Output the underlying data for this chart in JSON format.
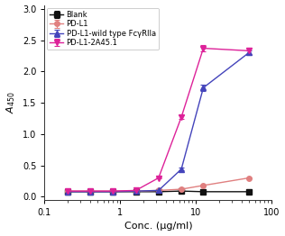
{
  "title": "",
  "xlabel": "Conc. (μg/ml)",
  "ylabel": "$A_{450}$",
  "xlim": [
    0.15,
    100
  ],
  "ylim": [
    -0.05,
    3.05
  ],
  "yticks": [
    0.0,
    0.5,
    1.0,
    1.5,
    2.0,
    2.5,
    3.0
  ],
  "series": [
    {
      "label": "Blank",
      "color": "#111111",
      "marker": "s",
      "x": [
        0.2,
        0.4,
        0.8,
        1.6,
        3.2,
        6.4,
        12.5,
        50
      ],
      "y": [
        0.08,
        0.08,
        0.08,
        0.08,
        0.08,
        0.09,
        0.08,
        0.08
      ],
      "yerr": [
        0.005,
        0.005,
        0.005,
        0.005,
        0.005,
        0.005,
        0.005,
        0.005
      ]
    },
    {
      "label": "PD-L1",
      "color": "#e08080",
      "marker": "o",
      "x": [
        0.2,
        0.4,
        0.8,
        1.6,
        3.2,
        6.4,
        12.5,
        50
      ],
      "y": [
        0.09,
        0.09,
        0.09,
        0.09,
        0.1,
        0.12,
        0.18,
        0.3
      ],
      "yerr": [
        0.005,
        0.005,
        0.005,
        0.005,
        0.005,
        0.005,
        0.01,
        0.01
      ]
    },
    {
      "label": "PD-L1-wild type FcγRIIa",
      "color": "#4444bb",
      "marker": "^",
      "x": [
        0.2,
        0.4,
        0.8,
        1.6,
        3.2,
        6.4,
        12.5,
        50
      ],
      "y": [
        0.08,
        0.08,
        0.08,
        0.09,
        0.1,
        0.44,
        1.74,
        2.3
      ],
      "yerr": [
        0.005,
        0.005,
        0.005,
        0.005,
        0.005,
        0.02,
        0.05,
        0.04
      ]
    },
    {
      "label": "PD-L1-2A45.1",
      "color": "#dd2299",
      "marker": "v",
      "x": [
        0.2,
        0.4,
        0.8,
        1.6,
        3.2,
        6.4,
        12.5,
        50
      ],
      "y": [
        0.09,
        0.09,
        0.09,
        0.1,
        0.3,
        1.27,
        2.37,
        2.33
      ],
      "yerr": [
        0.005,
        0.005,
        0.005,
        0.005,
        0.01,
        0.03,
        0.05,
        0.05
      ]
    }
  ],
  "legend_fontsize": 6.0,
  "axis_fontsize": 8,
  "tick_fontsize": 7,
  "markersize": 4,
  "linewidth": 1.0,
  "bg_color": "#ffffff"
}
